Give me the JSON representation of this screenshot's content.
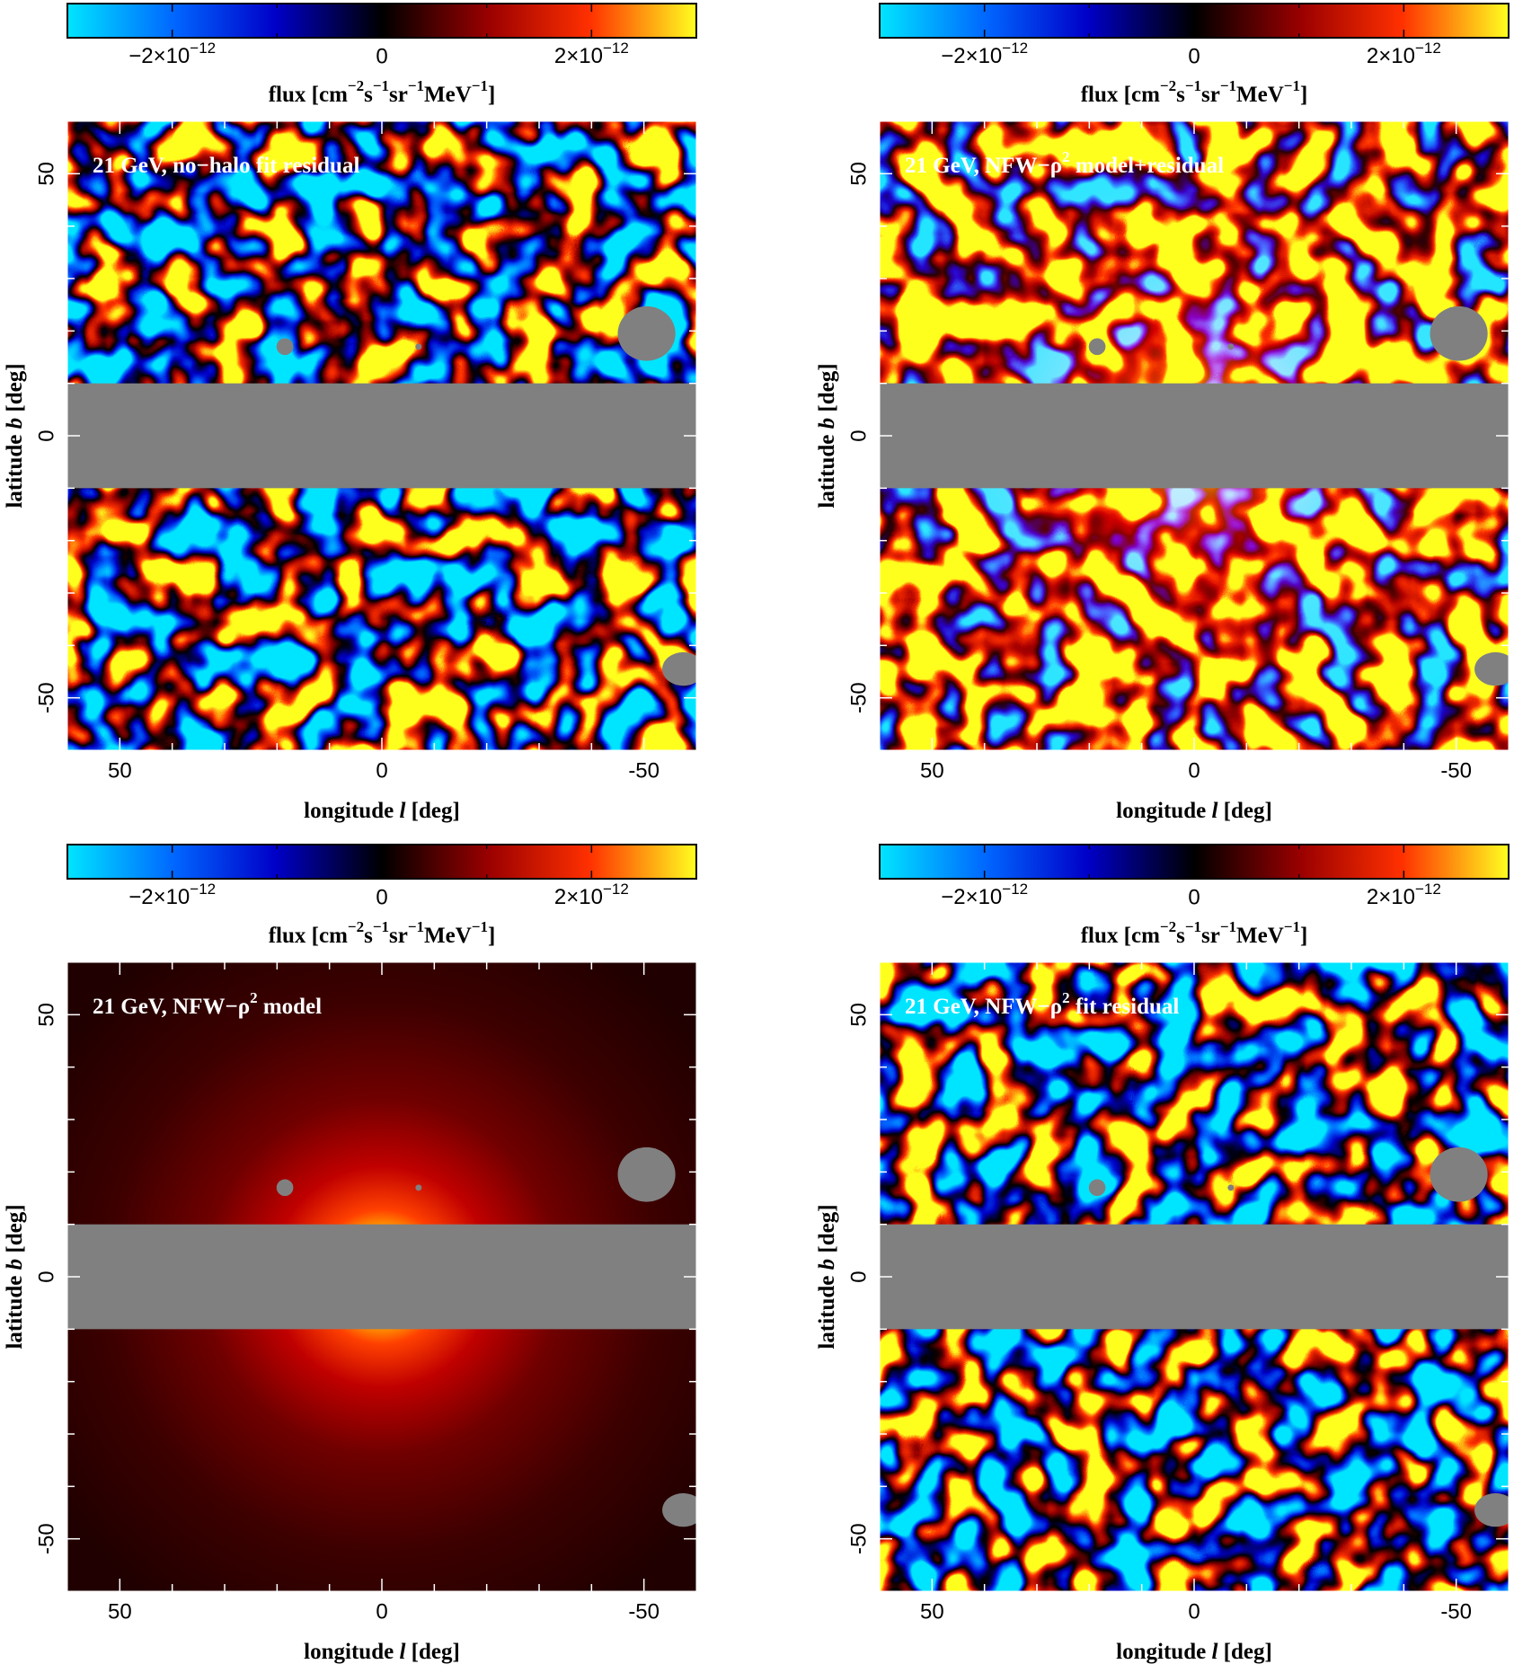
{
  "chart_data": [
    {
      "type": "heatmap",
      "layers": [
        "residual"
      ],
      "title": [
        "21 GeV, no−halo fit residual"
      ],
      "x_label": [
        "longitude ",
        "l",
        " [deg]"
      ],
      "y_label": [
        "latitude ",
        "b",
        " [deg]"
      ],
      "xlim": [
        60,
        -60
      ],
      "ylim": [
        -60,
        60
      ],
      "xticks": [
        50,
        0,
        -50
      ],
      "yticks": [
        -50,
        0,
        50
      ],
      "minor_ticks": [
        -40,
        -30,
        -20,
        -10,
        10,
        20,
        30,
        40
      ],
      "colorbar": {
        "lim": [
          -3e-12,
          3e-12
        ],
        "ticks": [
          {
            "value": -2e-12,
            "label": [
              "−2×10",
              "−12"
            ]
          },
          0,
          {
            "value": 2e-12,
            "label": [
              "2×10",
              "−12"
            ]
          }
        ],
        "minor_ticks": [
          -1e-12,
          1e-12
        ],
        "label": [
          "flux [cm",
          "−2",
          "s",
          "−1",
          "sr",
          "−1",
          "MeV",
          "−1",
          "]"
        ]
      }
    },
    {
      "type": "heatmap",
      "layers": [
        "model",
        "residual"
      ],
      "title": [
        "21 GeV, NFW−ρ",
        "2",
        " model+residual"
      ],
      "x_label": [
        "longitude ",
        "l",
        " [deg]"
      ],
      "y_label": [
        "latitude ",
        "b",
        " [deg]"
      ],
      "xlim": [
        60,
        -60
      ],
      "ylim": [
        -60,
        60
      ],
      "xticks": [
        50,
        0,
        -50
      ],
      "yticks": [
        -50,
        0,
        50
      ],
      "minor_ticks": [
        -40,
        -30,
        -20,
        -10,
        10,
        20,
        30,
        40
      ],
      "colorbar": {
        "lim": [
          -3e-12,
          3e-12
        ],
        "ticks": [
          {
            "value": -2e-12,
            "label": [
              "−2×10",
              "−12"
            ]
          },
          0,
          {
            "value": 2e-12,
            "label": [
              "2×10",
              "−12"
            ]
          }
        ],
        "minor_ticks": [
          -1e-12,
          1e-12
        ],
        "label": [
          "flux [cm",
          "−2",
          "s",
          "−1",
          "sr",
          "−1",
          "MeV",
          "−1",
          "]"
        ]
      }
    },
    {
      "type": "heatmap",
      "layers": [
        "model"
      ],
      "title": [
        "21 GeV, NFW−ρ",
        "2",
        " model"
      ],
      "x_label": [
        "longitude ",
        "l",
        " [deg]"
      ],
      "y_label": [
        "latitude ",
        "b",
        " [deg]"
      ],
      "xlim": [
        60,
        -60
      ],
      "ylim": [
        -60,
        60
      ],
      "xticks": [
        50,
        0,
        -50
      ],
      "yticks": [
        -50,
        0,
        50
      ],
      "minor_ticks": [
        -40,
        -30,
        -20,
        -10,
        10,
        20,
        30,
        40
      ],
      "colorbar": {
        "lim": [
          -3e-12,
          3e-12
        ],
        "ticks": [
          {
            "value": -2e-12,
            "label": [
              "−2×10",
              "−12"
            ]
          },
          0,
          {
            "value": 2e-12,
            "label": [
              "2×10",
              "−12"
            ]
          }
        ],
        "minor_ticks": [
          -1e-12,
          1e-12
        ],
        "label": [
          "flux [cm",
          "−2",
          "s",
          "−1",
          "sr",
          "−1",
          "MeV",
          "−1",
          "]"
        ]
      }
    },
    {
      "type": "heatmap",
      "layers": [
        "residual"
      ],
      "title": [
        "21 GeV, NFW−ρ",
        "2",
        " fit residual"
      ],
      "x_label": [
        "longitude ",
        "l",
        " [deg]"
      ],
      "y_label": [
        "latitude ",
        "b",
        " [deg]"
      ],
      "xlim": [
        60,
        -60
      ],
      "ylim": [
        -60,
        60
      ],
      "xticks": [
        50,
        0,
        -50
      ],
      "yticks": [
        -50,
        0,
        50
      ],
      "minor_ticks": [
        -40,
        -30,
        -20,
        -10,
        10,
        20,
        30,
        40
      ],
      "colorbar": {
        "lim": [
          -3e-12,
          3e-12
        ],
        "ticks": [
          {
            "value": -2e-12,
            "label": [
              "−2×10",
              "−12"
            ]
          },
          0,
          {
            "value": 2e-12,
            "label": [
              "2×10",
              "−12"
            ]
          }
        ],
        "minor_ticks": [
          -1e-12,
          1e-12
        ],
        "label": [
          "flux [cm",
          "−2",
          "s",
          "−1",
          "sr",
          "−1",
          "MeV",
          "−1",
          "]"
        ]
      }
    }
  ]
}
